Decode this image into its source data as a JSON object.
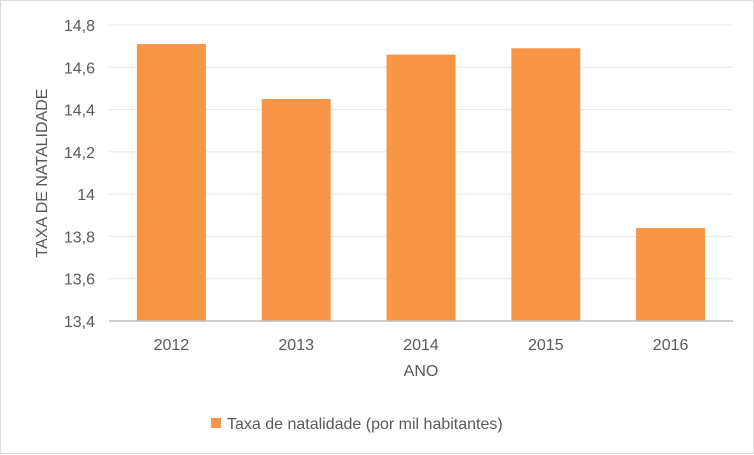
{
  "chart_data": {
    "type": "bar",
    "categories": [
      "2012",
      "2013",
      "2014",
      "2015",
      "2016"
    ],
    "series": [
      {
        "name": "Taxa de natalidade (por mil habitantes)",
        "values": [
          14.71,
          14.45,
          14.66,
          14.69,
          13.84
        ],
        "color": "#f79646"
      }
    ],
    "xlabel": "ANO",
    "ylabel": "TAXA DE NATALIDADE",
    "ylim": [
      13.4,
      14.8
    ],
    "yticks": [
      "13,4",
      "13,6",
      "13,8",
      "14",
      "14,2",
      "14,4",
      "14,6",
      "14,8"
    ],
    "grid": true,
    "legend_position": "bottom"
  }
}
